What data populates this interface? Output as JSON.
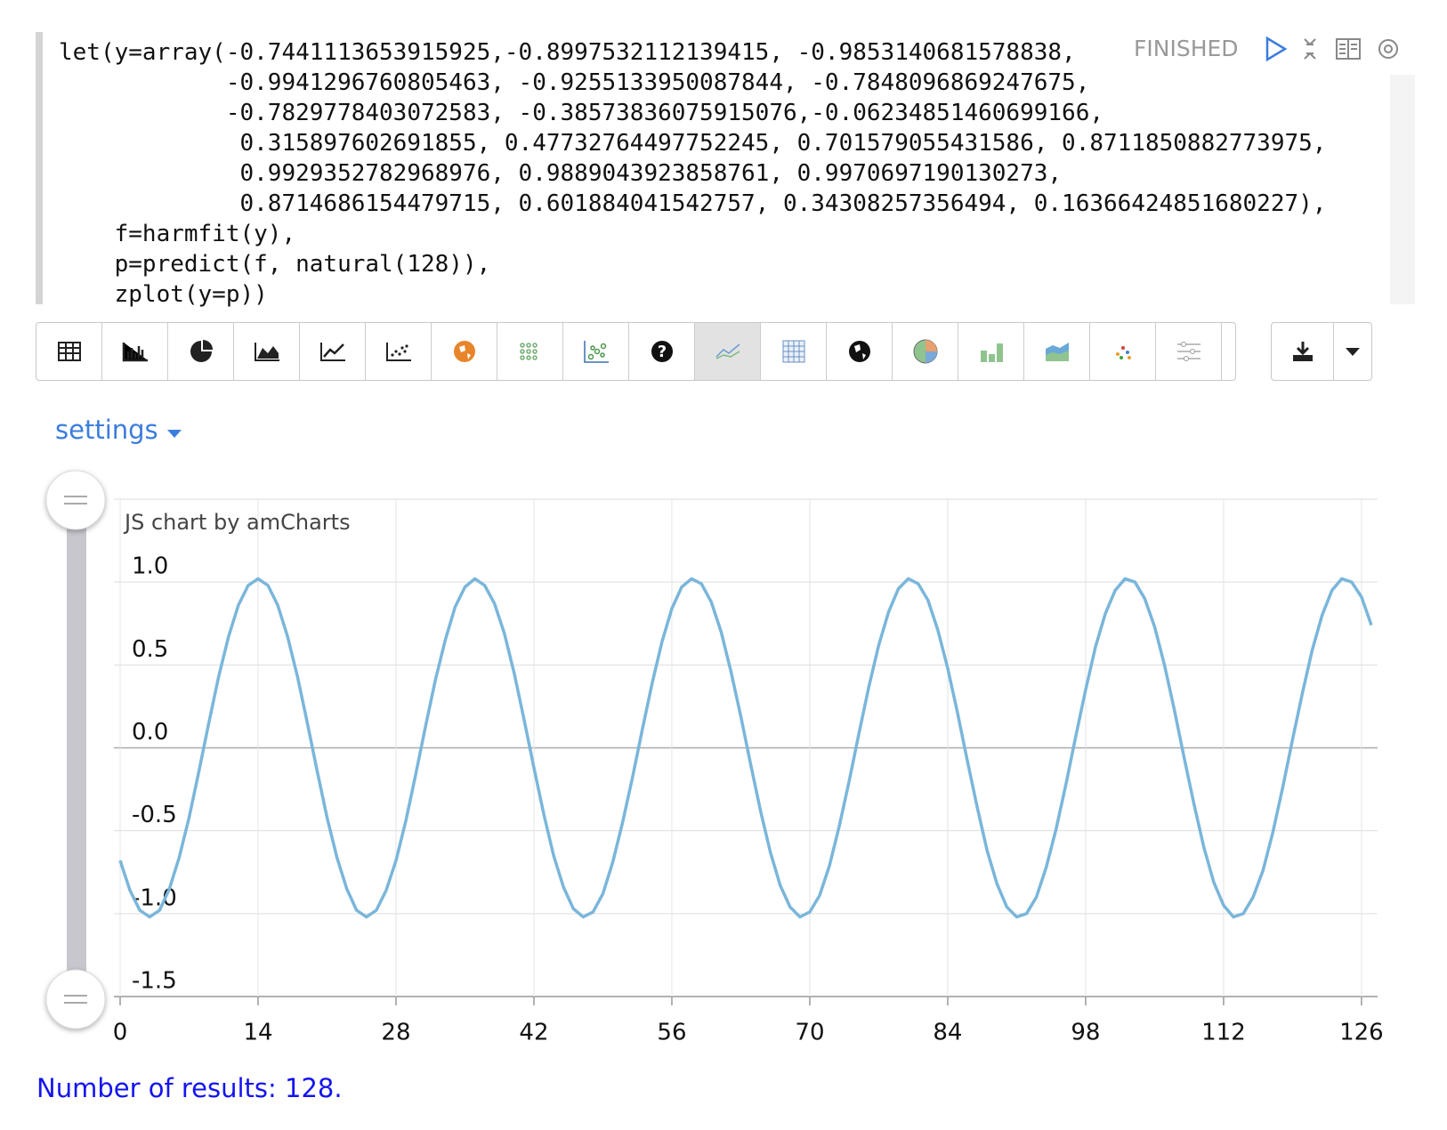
{
  "notebook": {
    "code": [
      "let(y=array(-0.7441113653915925,-0.8997532112139415, -0.9853140681578838,",
      "            -0.9941296760805463, -0.9255133950087844, -0.7848096869247675,",
      "            -0.7829778403072583, -0.38573836075915076,-0.06234851460699166,",
      "             0.315897602691855, 0.47732764497752245, 0.701579055431586, 0.8711850882773975,",
      "             0.9929352782968976, 0.9889043923858761, 0.9970697190130273,",
      "             0.8714686154479715, 0.601884041542757, 0.34308257356494, 0.16366424851680227),",
      "    f=harmfit(y),",
      "    p=predict(f, natural(128)),",
      "    zplot(y=p))"
    ],
    "status": "FINISHED",
    "settings": "settings",
    "result": "Number of results: 128."
  },
  "chart_data": {
    "type": "line",
    "watermark": "JS chart by amCharts",
    "x": [
      0,
      1,
      2,
      3,
      4,
      5,
      6,
      7,
      8,
      9,
      10,
      11,
      12,
      13,
      14,
      15,
      16,
      17,
      18,
      19,
      20,
      21,
      22,
      23,
      24,
      25,
      26,
      27,
      28,
      29,
      30,
      31,
      32,
      33,
      34,
      35,
      36,
      37,
      38,
      39,
      40,
      41,
      42,
      43,
      44,
      45,
      46,
      47,
      48,
      49,
      50,
      51,
      52,
      53,
      54,
      55,
      56,
      57,
      58,
      59,
      60,
      61,
      62,
      63,
      64,
      65,
      66,
      67,
      68,
      69,
      70,
      71,
      72,
      73,
      74,
      75,
      76,
      77,
      78,
      79,
      80,
      81,
      82,
      83,
      84,
      85,
      86,
      87,
      88,
      89,
      90,
      91,
      92,
      93,
      94,
      95,
      96,
      97,
      98,
      99,
      100,
      101,
      102,
      103,
      104,
      105,
      106,
      107,
      108,
      109,
      110,
      111,
      112,
      113,
      114,
      115,
      116,
      117,
      118,
      119,
      120,
      121,
      122,
      123,
      124,
      125,
      126,
      127
    ],
    "series": [
      {
        "color": "#7ab6da",
        "values": [
          -0.68,
          -0.86,
          -0.98,
          -1.02,
          -0.98,
          -0.85,
          -0.66,
          -0.42,
          -0.14,
          0.15,
          0.43,
          0.67,
          0.86,
          0.98,
          1.02,
          0.98,
          0.86,
          0.67,
          0.43,
          0.15,
          -0.14,
          -0.42,
          -0.66,
          -0.85,
          -0.98,
          -1.02,
          -0.98,
          -0.86,
          -0.68,
          -0.44,
          -0.16,
          0.13,
          0.41,
          0.65,
          0.85,
          0.97,
          1.02,
          0.98,
          0.87,
          0.69,
          0.45,
          0.17,
          -0.12,
          -0.4,
          -0.65,
          -0.84,
          -0.97,
          -1.02,
          -0.99,
          -0.88,
          -0.69,
          -0.45,
          -0.18,
          0.11,
          0.39,
          0.64,
          0.84,
          0.97,
          1.02,
          0.99,
          0.88,
          0.7,
          0.46,
          0.19,
          -0.1,
          -0.38,
          -0.63,
          -0.83,
          -0.96,
          -1.02,
          -0.99,
          -0.89,
          -0.71,
          -0.47,
          -0.2,
          0.09,
          0.37,
          0.62,
          0.82,
          0.96,
          1.02,
          0.99,
          0.89,
          0.71,
          0.48,
          0.21,
          -0.08,
          -0.36,
          -0.62,
          -0.82,
          -0.96,
          -1.02,
          -1.0,
          -0.9,
          -0.72,
          -0.49,
          -0.22,
          0.07,
          0.35,
          0.61,
          0.81,
          0.95,
          1.02,
          1.0,
          0.9,
          0.73,
          0.5,
          0.23,
          -0.06,
          -0.34,
          -0.6,
          -0.81,
          -0.95,
          -1.02,
          -1.0,
          -0.9,
          -0.74,
          -0.51,
          -0.24,
          0.05,
          0.33,
          0.59,
          0.8,
          0.95,
          1.02,
          1.0,
          0.91,
          0.74
        ]
      }
    ],
    "xlim": [
      0,
      127
    ],
    "ylim": [
      -1.5,
      1.5
    ],
    "xticks": [
      0,
      14,
      28,
      42,
      56,
      70,
      84,
      98,
      112,
      126
    ],
    "yticks": [
      -1.5,
      {
        "value": -1,
        "label": "-1.0"
      },
      -0.5,
      {
        "value": 0,
        "label": "0.0"
      },
      0.5,
      {
        "value": 1,
        "label": "1.0"
      }
    ],
    "grid": true
  }
}
